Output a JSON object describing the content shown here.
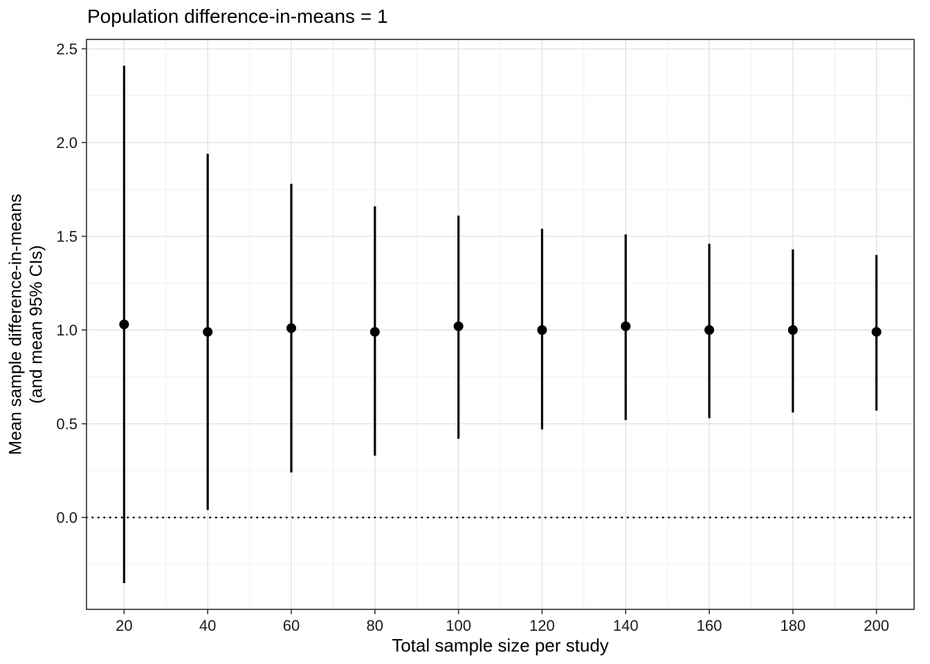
{
  "chart_data": {
    "type": "scatter",
    "title": "Population difference-in-means = 1",
    "xlabel": "Total sample size per study",
    "ylabel": "Mean sample difference-in-means\n(and mean 95% CIs)",
    "x": [
      20,
      40,
      60,
      80,
      100,
      120,
      140,
      160,
      180,
      200
    ],
    "series": [
      {
        "name": "mean sample difference-in-means",
        "values": [
          1.03,
          0.99,
          1.01,
          0.99,
          1.02,
          1.0,
          1.02,
          1.0,
          1.0,
          0.99
        ]
      }
    ],
    "ci_low": [
      -0.35,
      0.04,
      0.24,
      0.33,
      0.42,
      0.47,
      0.52,
      0.53,
      0.56,
      0.57
    ],
    "ci_high": [
      2.41,
      1.94,
      1.78,
      1.66,
      1.61,
      1.54,
      1.51,
      1.46,
      1.43,
      1.4
    ],
    "reference_line": 0,
    "reference_line_style": "dotted",
    "xlim": [
      11,
      209
    ],
    "ylim": [
      -0.49,
      2.55
    ],
    "xticks": [
      20,
      40,
      60,
      80,
      100,
      120,
      140,
      160,
      180,
      200
    ],
    "yticks": [
      0.0,
      0.5,
      1.0,
      1.5,
      2.0,
      2.5
    ],
    "grid": true,
    "legend": "none",
    "colors": {
      "point": "#000000",
      "errorbar": "#000000",
      "grid_major": "#e2e2e2",
      "grid_minor": "#efefef",
      "panel_border": "#2b2b2b",
      "tick_label": "#1a1a1a",
      "background": "#ffffff"
    }
  }
}
